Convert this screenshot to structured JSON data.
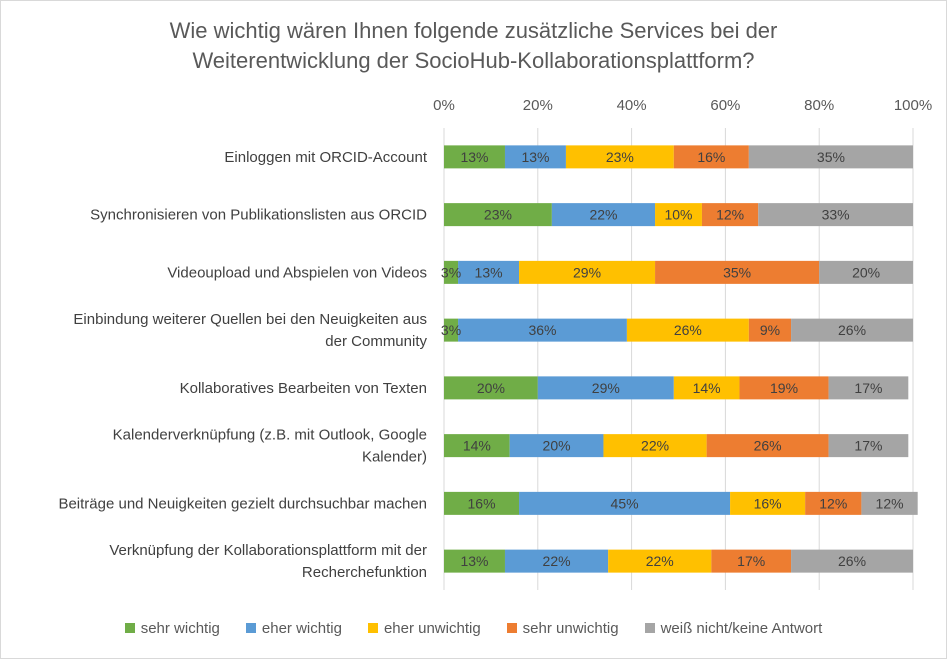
{
  "chart_data": {
    "type": "bar",
    "orientation": "horizontal",
    "stacked": true,
    "percent_stacked": true,
    "title": [
      "Wie wichtig wären Ihnen folgende zusätzliche Services bei der",
      "Weiterentwicklung der SocioHub-Kollaborationsplattform?"
    ],
    "xlim": [
      0,
      100
    ],
    "x_ticks": [
      "0%",
      "20%",
      "40%",
      "60%",
      "80%",
      "100%"
    ],
    "grid": true,
    "legend_position": "bottom",
    "categories": [
      [
        "Einloggen mit ORCID-Account"
      ],
      [
        "Synchronisieren von Publikationslisten aus ORCID"
      ],
      [
        "Videoupload und Abspielen von Videos"
      ],
      [
        "Einbindung weiterer Quellen bei den Neuigkeiten aus",
        "der Community"
      ],
      [
        "Kollaboratives Bearbeiten von Texten"
      ],
      [
        "Kalenderverknüpfung (z.B. mit Outlook, Google",
        "Kalender)"
      ],
      [
        "Beiträge und Neuigkeiten gezielt durchsuchbar machen"
      ],
      [
        "Verknüpfung der Kollaborationsplattform mit der",
        "Recherchefunktion"
      ]
    ],
    "series": [
      {
        "name": "sehr wichtig",
        "color": "#70ad47",
        "values": [
          13,
          23,
          3,
          3,
          20,
          14,
          16,
          13
        ]
      },
      {
        "name": "eher wichtig",
        "color": "#5b9bd5",
        "values": [
          13,
          22,
          13,
          36,
          29,
          20,
          45,
          22
        ]
      },
      {
        "name": "eher unwichtig",
        "color": "#ffc000",
        "values": [
          23,
          10,
          29,
          26,
          14,
          22,
          16,
          22
        ]
      },
      {
        "name": "sehr unwichtig",
        "color": "#ed7d31",
        "values": [
          16,
          12,
          35,
          9,
          19,
          26,
          12,
          17
        ]
      },
      {
        "name": "weiß nicht/keine Antwort",
        "color": "#a5a5a5",
        "values": [
          35,
          33,
          20,
          26,
          17,
          17,
          12,
          26
        ]
      }
    ]
  }
}
